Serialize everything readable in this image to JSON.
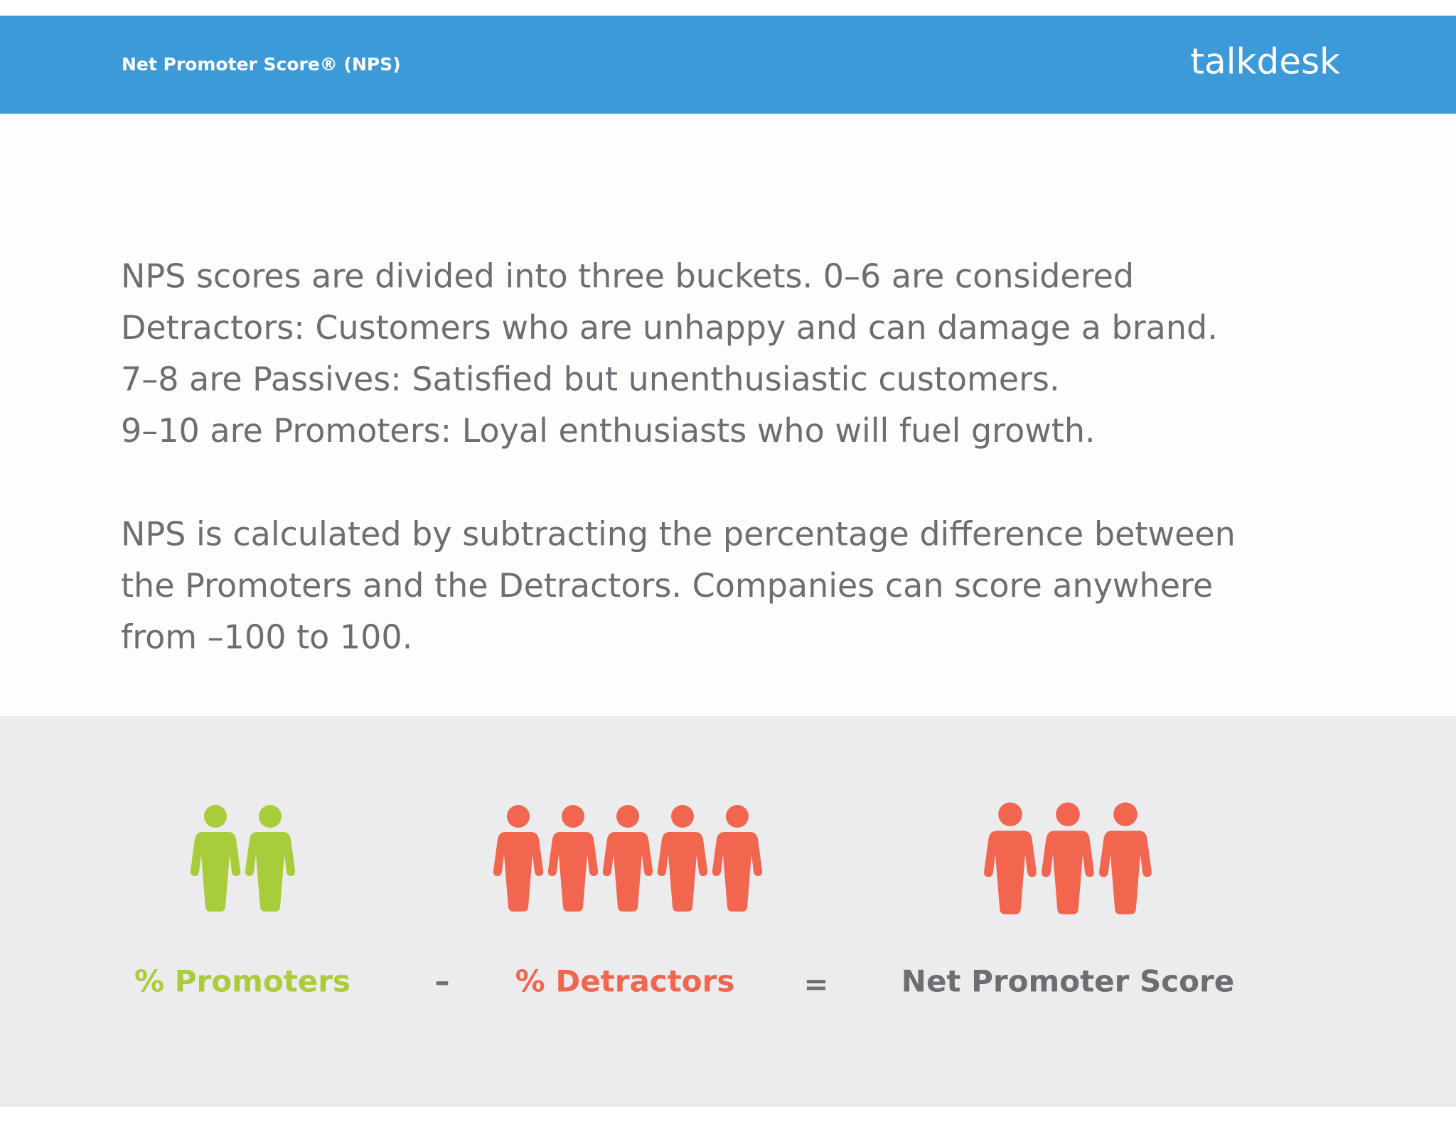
{
  "header": {
    "title": "Net Promoter Score® (NPS)",
    "logo": "talkdesk"
  },
  "body": {
    "paragraphs": [
      [
        "NPS scores are divided into three buckets. 0–6 are considered",
        "Detractors: Customers who are unhappy and can damage a brand.",
        "7–8 are Passives: Satisfied but unenthusiastic customers.",
        "9–10 are Promoters: Loyal enthusiasts who will fuel growth."
      ],
      [
        "NPS is calculated by subtracting the percentage difference between",
        "the Promoters and the Detractors. Companies can score anywhere",
        "from –100 to 100."
      ]
    ]
  },
  "formula": {
    "promoters": "% Promoters",
    "minus": "–",
    "detractors": "% Detractors",
    "equals": "=",
    "result": "Net Promoter Score"
  }
}
